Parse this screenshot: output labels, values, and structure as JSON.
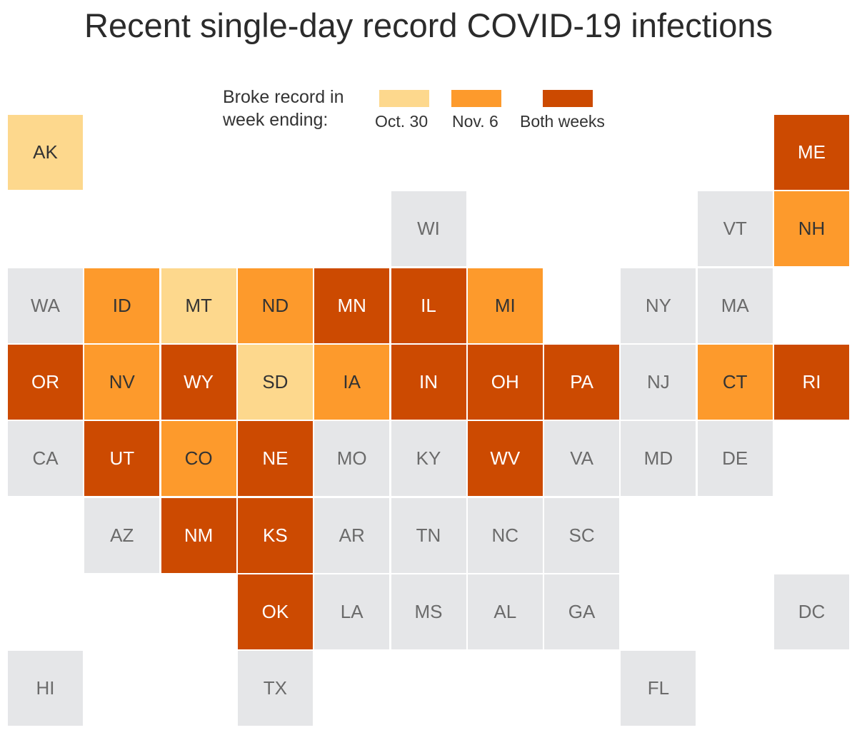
{
  "title": "Recent single-day record COVID-19 infections",
  "legend": {
    "title": "Broke record in week ending:",
    "items": [
      {
        "key": "oct30",
        "label": "Oct. 30",
        "color": "#fdd88d"
      },
      {
        "key": "nov6",
        "label": "Nov. 6",
        "color": "#fd9a2c"
      },
      {
        "key": "both",
        "label": "Both weeks",
        "color": "#cc4a01"
      }
    ]
  },
  "colors": {
    "none": "#e5e6e8",
    "oct30": "#fdd88d",
    "nov6": "#fd9a2c",
    "both": "#cc4a01",
    "text_dark": "#333333",
    "text_gray": "#6b6b6b",
    "text_light": "#ffffff"
  },
  "chart_data": {
    "type": "tile-grid-map",
    "states": [
      {
        "abbr": "AK",
        "col": 0,
        "row": 0,
        "status": "oct30"
      },
      {
        "abbr": "ME",
        "col": 10,
        "row": 0,
        "status": "both"
      },
      {
        "abbr": "WI",
        "col": 5,
        "row": 1,
        "status": "none"
      },
      {
        "abbr": "VT",
        "col": 9,
        "row": 1,
        "status": "none"
      },
      {
        "abbr": "NH",
        "col": 10,
        "row": 1,
        "status": "nov6"
      },
      {
        "abbr": "WA",
        "col": 0,
        "row": 2,
        "status": "none"
      },
      {
        "abbr": "ID",
        "col": 1,
        "row": 2,
        "status": "nov6"
      },
      {
        "abbr": "MT",
        "col": 2,
        "row": 2,
        "status": "oct30"
      },
      {
        "abbr": "ND",
        "col": 3,
        "row": 2,
        "status": "nov6"
      },
      {
        "abbr": "MN",
        "col": 4,
        "row": 2,
        "status": "both"
      },
      {
        "abbr": "IL",
        "col": 5,
        "row": 2,
        "status": "both"
      },
      {
        "abbr": "MI",
        "col": 6,
        "row": 2,
        "status": "nov6"
      },
      {
        "abbr": "NY",
        "col": 8,
        "row": 2,
        "status": "none"
      },
      {
        "abbr": "MA",
        "col": 9,
        "row": 2,
        "status": "none"
      },
      {
        "abbr": "OR",
        "col": 0,
        "row": 3,
        "status": "both"
      },
      {
        "abbr": "NV",
        "col": 1,
        "row": 3,
        "status": "nov6"
      },
      {
        "abbr": "WY",
        "col": 2,
        "row": 3,
        "status": "both"
      },
      {
        "abbr": "SD",
        "col": 3,
        "row": 3,
        "status": "oct30"
      },
      {
        "abbr": "IA",
        "col": 4,
        "row": 3,
        "status": "nov6"
      },
      {
        "abbr": "IN",
        "col": 5,
        "row": 3,
        "status": "both"
      },
      {
        "abbr": "OH",
        "col": 6,
        "row": 3,
        "status": "both"
      },
      {
        "abbr": "PA",
        "col": 7,
        "row": 3,
        "status": "both"
      },
      {
        "abbr": "NJ",
        "col": 8,
        "row": 3,
        "status": "none"
      },
      {
        "abbr": "CT",
        "col": 9,
        "row": 3,
        "status": "nov6"
      },
      {
        "abbr": "RI",
        "col": 10,
        "row": 3,
        "status": "both"
      },
      {
        "abbr": "CA",
        "col": 0,
        "row": 4,
        "status": "none"
      },
      {
        "abbr": "UT",
        "col": 1,
        "row": 4,
        "status": "both"
      },
      {
        "abbr": "CO",
        "col": 2,
        "row": 4,
        "status": "nov6"
      },
      {
        "abbr": "NE",
        "col": 3,
        "row": 4,
        "status": "both"
      },
      {
        "abbr": "MO",
        "col": 4,
        "row": 4,
        "status": "none"
      },
      {
        "abbr": "KY",
        "col": 5,
        "row": 4,
        "status": "none"
      },
      {
        "abbr": "WV",
        "col": 6,
        "row": 4,
        "status": "both"
      },
      {
        "abbr": "VA",
        "col": 7,
        "row": 4,
        "status": "none"
      },
      {
        "abbr": "MD",
        "col": 8,
        "row": 4,
        "status": "none"
      },
      {
        "abbr": "DE",
        "col": 9,
        "row": 4,
        "status": "none"
      },
      {
        "abbr": "AZ",
        "col": 1,
        "row": 5,
        "status": "none"
      },
      {
        "abbr": "NM",
        "col": 2,
        "row": 5,
        "status": "both"
      },
      {
        "abbr": "KS",
        "col": 3,
        "row": 5,
        "status": "both"
      },
      {
        "abbr": "AR",
        "col": 4,
        "row": 5,
        "status": "none"
      },
      {
        "abbr": "TN",
        "col": 5,
        "row": 5,
        "status": "none"
      },
      {
        "abbr": "NC",
        "col": 6,
        "row": 5,
        "status": "none"
      },
      {
        "abbr": "SC",
        "col": 7,
        "row": 5,
        "status": "none"
      },
      {
        "abbr": "OK",
        "col": 3,
        "row": 6,
        "status": "both"
      },
      {
        "abbr": "LA",
        "col": 4,
        "row": 6,
        "status": "none"
      },
      {
        "abbr": "MS",
        "col": 5,
        "row": 6,
        "status": "none"
      },
      {
        "abbr": "AL",
        "col": 6,
        "row": 6,
        "status": "none"
      },
      {
        "abbr": "GA",
        "col": 7,
        "row": 6,
        "status": "none"
      },
      {
        "abbr": "DC",
        "col": 10,
        "row": 6,
        "status": "none"
      },
      {
        "abbr": "HI",
        "col": 0,
        "row": 7,
        "status": "none"
      },
      {
        "abbr": "TX",
        "col": 3,
        "row": 7,
        "status": "none"
      },
      {
        "abbr": "FL",
        "col": 8,
        "row": 7,
        "status": "none"
      }
    ]
  }
}
